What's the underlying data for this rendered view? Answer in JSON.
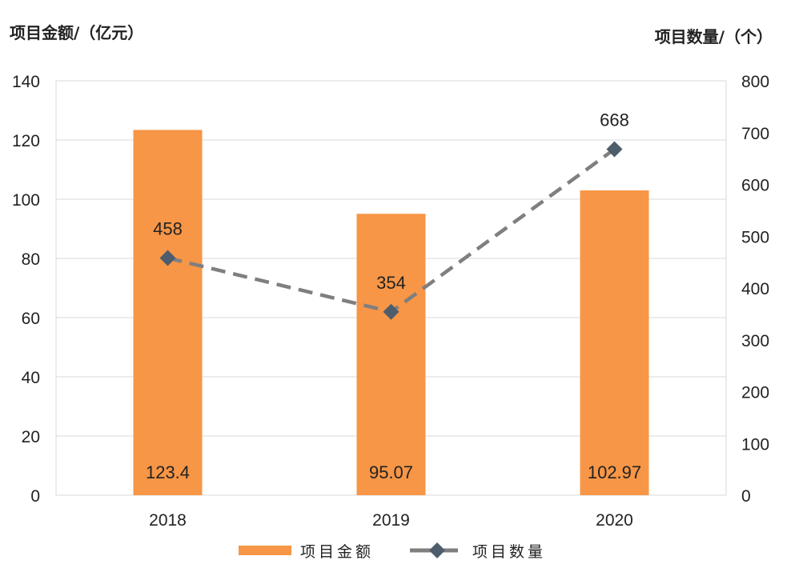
{
  "chart_data": {
    "type": "bar+line",
    "categories": [
      "2018",
      "2019",
      "2020"
    ],
    "series": [
      {
        "name": "项目金额",
        "type": "bar",
        "axis": "left",
        "values": [
          123.4,
          95.07,
          102.97
        ],
        "labels": [
          "123.4",
          "95.07",
          "102.97"
        ],
        "color": "#f79646"
      },
      {
        "name": "项目数量",
        "type": "line",
        "axis": "right",
        "values": [
          458,
          354,
          668
        ],
        "labels": [
          "458",
          "354",
          "668"
        ],
        "color": "#7f7f7f",
        "marker_color": "#4e5d6c",
        "marker": "diamond",
        "line_style": "dashed"
      }
    ],
    "ylabel_left": "项目金额/（亿元）",
    "ylabel_right": "项目数量/（个）",
    "ylim_left": [
      0,
      140
    ],
    "ylim_right": [
      0,
      800
    ],
    "yticks_left": [
      "0",
      "20",
      "40",
      "60",
      "80",
      "100",
      "120",
      "140"
    ],
    "yticks_right": [
      "0",
      "100",
      "200",
      "300",
      "400",
      "500",
      "600",
      "700",
      "800"
    ],
    "grid": true,
    "legend_placement": "bottom"
  }
}
